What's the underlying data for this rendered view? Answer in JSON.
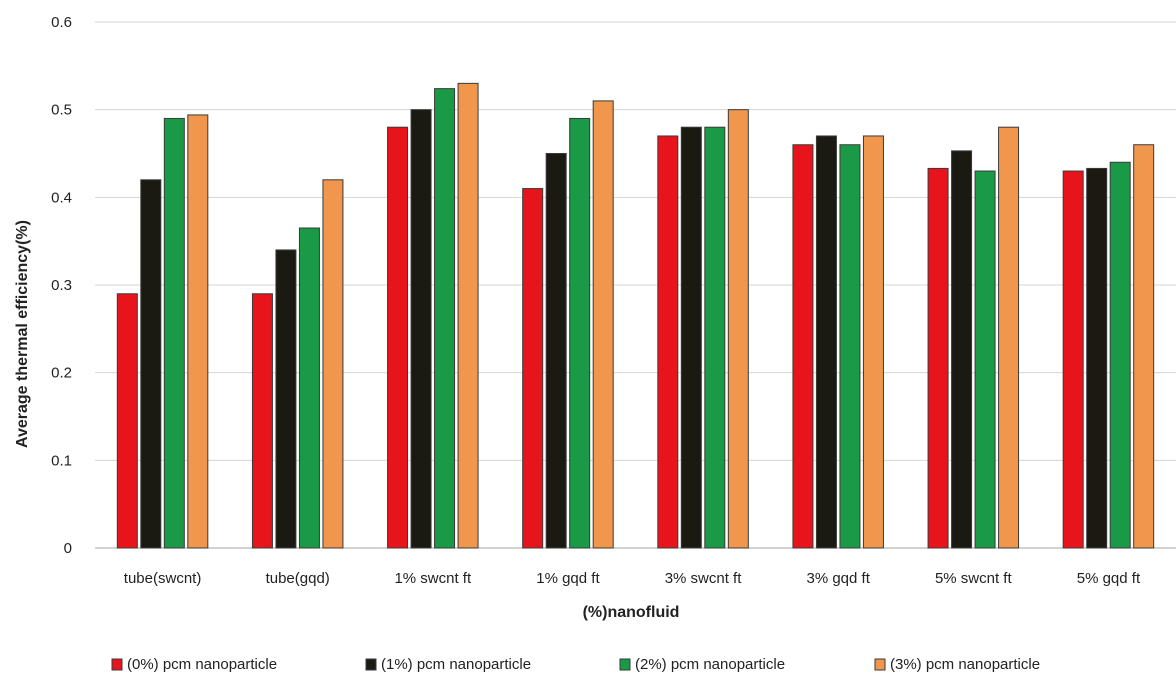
{
  "chart_data": {
    "type": "bar",
    "title": "",
    "xlabel": "(%)nanofluid",
    "ylabel": "Average thermal efficiency(%)",
    "ylim": [
      0,
      0.6
    ],
    "yticks": [
      0,
      0.1,
      0.2,
      0.3,
      0.4,
      0.5,
      0.6
    ],
    "ytick_labels": [
      "0",
      "0.1",
      "0.2",
      "0.3",
      "0.4",
      "0.5",
      "0.6"
    ],
    "grid": true,
    "legend_position": "bottom",
    "categories": [
      "tube(swcnt)",
      "tube(gqd)",
      "1% swcnt ft",
      "1% gqd ft",
      "3% swcnt ft",
      "3% gqd ft",
      "5% swcnt ft",
      "5% gqd ft"
    ],
    "series": [
      {
        "name": "(0%) pcm nanoparticle",
        "color": "#e8141b",
        "values": [
          0.29,
          0.29,
          0.48,
          0.41,
          0.47,
          0.46,
          0.433,
          0.43
        ]
      },
      {
        "name": "(1%) pcm nanoparticle",
        "color": "#1a1a12",
        "values": [
          0.42,
          0.34,
          0.5,
          0.45,
          0.48,
          0.47,
          0.453,
          0.433
        ]
      },
      {
        "name": "(2%) pcm nanoparticle",
        "color": "#1a9a47",
        "values": [
          0.49,
          0.365,
          0.524,
          0.49,
          0.48,
          0.46,
          0.43,
          0.44
        ]
      },
      {
        "name": "(3%) pcm nanoparticle",
        "color": "#f0974d",
        "values": [
          0.494,
          0.42,
          0.53,
          0.51,
          0.5,
          0.47,
          0.48,
          0.46
        ]
      }
    ]
  }
}
